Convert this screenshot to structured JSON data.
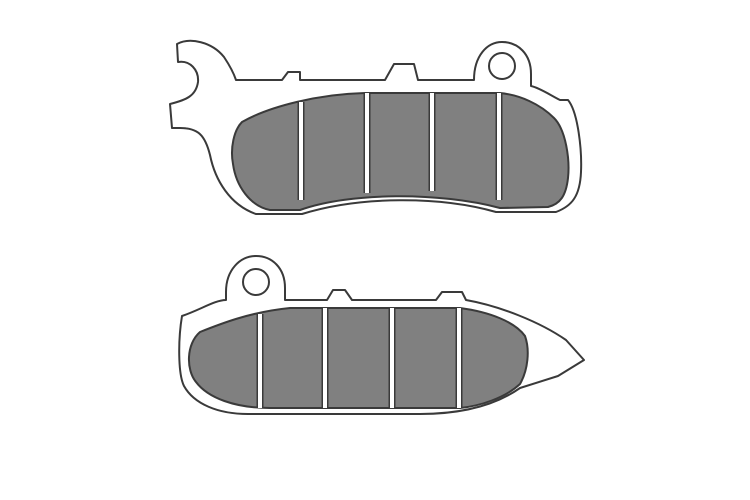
{
  "image": {
    "subject": "brake-pads",
    "background": "#ffffff",
    "colors": {
      "backing_plate": "#ffffff",
      "outline": "#3a3a3a",
      "friction_material": "#808080",
      "slot_line": "#ffffff"
    },
    "pads": [
      {
        "name": "upper-brake-pad",
        "segments": 5
      },
      {
        "name": "lower-brake-pad",
        "segments": 5
      }
    ]
  }
}
